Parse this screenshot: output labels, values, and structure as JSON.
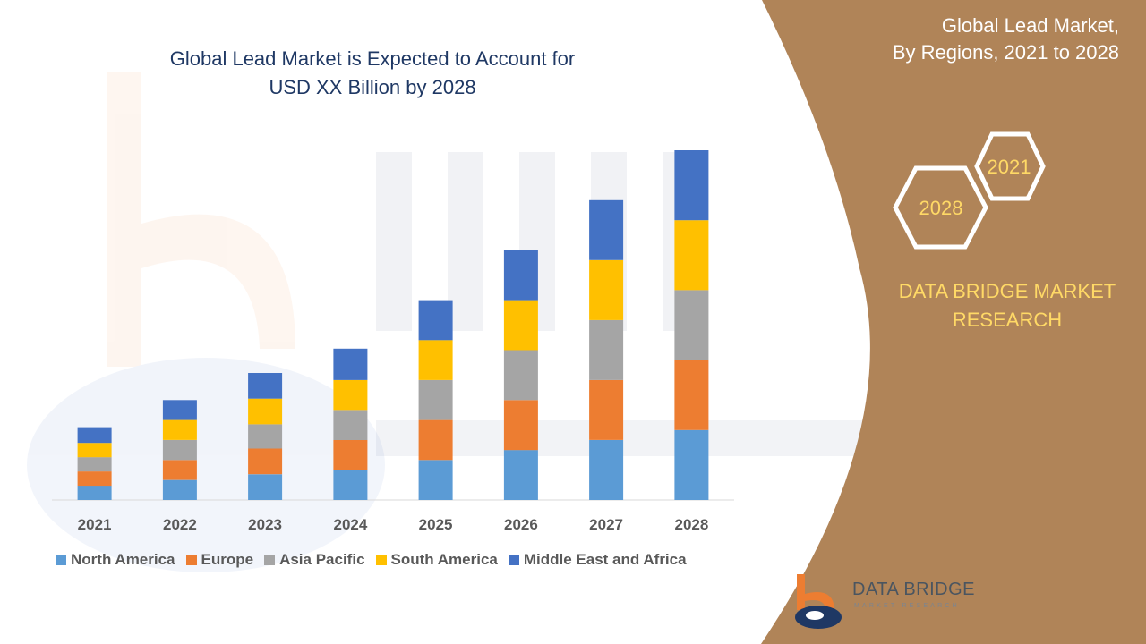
{
  "header": {
    "title_line1": "Global Lead Market is Expected to Account for",
    "title_line2": "USD XX Billion by 2028"
  },
  "panel": {
    "title_line1": "Global Lead Market,",
    "title_line2": "By Regions, 2021 to 2028",
    "hex_back_year": "2021",
    "hex_front_year": "2028",
    "brand_line1": "DATA BRIDGE MARKET",
    "brand_line2": "RESEARCH"
  },
  "logo": {
    "name": "DATA BRIDGE",
    "tagline": "MARKET RESEARCH"
  },
  "colors": {
    "panel_background": "#b08458",
    "title_text": "#1f3864",
    "accent_text": "#ffd966"
  },
  "chart_data": {
    "type": "bar",
    "stacked": true,
    "categories": [
      "2021",
      "2022",
      "2023",
      "2024",
      "2025",
      "2026",
      "2027",
      "2028"
    ],
    "ylim": [
      0,
      12.5
    ],
    "grid": false,
    "legend_position": "bottom",
    "series": [
      {
        "name": "North America",
        "color": "#5b9bd5",
        "values": [
          0.5,
          0.7,
          0.9,
          1.05,
          1.4,
          1.75,
          2.1,
          2.45
        ]
      },
      {
        "name": "Europe",
        "color": "#ed7d31",
        "values": [
          0.5,
          0.7,
          0.9,
          1.05,
          1.4,
          1.75,
          2.1,
          2.45
        ]
      },
      {
        "name": "Asia Pacific",
        "color": "#a5a5a5",
        "values": [
          0.5,
          0.7,
          0.85,
          1.05,
          1.4,
          1.75,
          2.1,
          2.45
        ]
      },
      {
        "name": "South America",
        "color": "#ffc000",
        "values": [
          0.5,
          0.7,
          0.9,
          1.05,
          1.4,
          1.75,
          2.1,
          2.45
        ]
      },
      {
        "name": "Middle East and Africa",
        "color": "#4472c4",
        "values": [
          0.55,
          0.7,
          0.9,
          1.1,
          1.4,
          1.75,
          2.1,
          2.45
        ]
      }
    ]
  }
}
